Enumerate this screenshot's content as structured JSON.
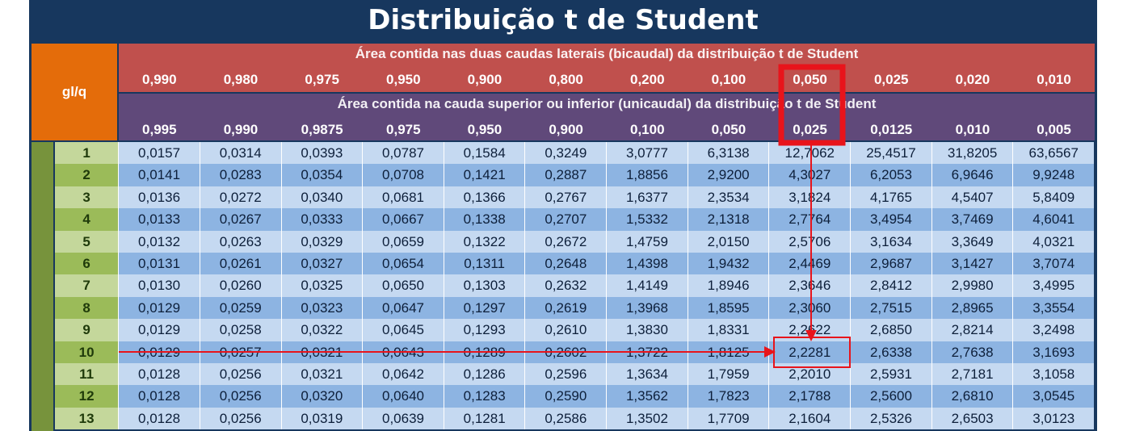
{
  "title": "Distribuição t de Student",
  "corner_label": "gl/q",
  "two_tailed": {
    "title": "Área contida nas duas caudas laterais (bicaudal) da distribuição t de Student",
    "headers": [
      "0,990",
      "0,980",
      "0,975",
      "0,950",
      "0,900",
      "0,800",
      "0,200",
      "0,100",
      "0,050",
      "0,025",
      "0,020",
      "0,010"
    ]
  },
  "one_tailed": {
    "title": "Área contida na cauda superior ou inferior (unicaudal) da distribuição t de Student",
    "headers": [
      "0,995",
      "0,990",
      "0,9875",
      "0,975",
      "0,950",
      "0,900",
      "0,100",
      "0,050",
      "0,025",
      "0,0125",
      "0,010",
      "0,005"
    ]
  },
  "rows": [
    {
      "gl": "1",
      "values": [
        "0,0157",
        "0,0314",
        "0,0393",
        "0,0787",
        "0,1584",
        "0,3249",
        "3,0777",
        "6,3138",
        "12,7062",
        "25,4517",
        "31,8205",
        "63,6567"
      ]
    },
    {
      "gl": "2",
      "values": [
        "0,0141",
        "0,0283",
        "0,0354",
        "0,0708",
        "0,1421",
        "0,2887",
        "1,8856",
        "2,9200",
        "4,3027",
        "6,2053",
        "6,9646",
        "9,9248"
      ]
    },
    {
      "gl": "3",
      "values": [
        "0,0136",
        "0,0272",
        "0,0340",
        "0,0681",
        "0,1366",
        "0,2767",
        "1,6377",
        "2,3534",
        "3,1824",
        "4,1765",
        "4,5407",
        "5,8409"
      ]
    },
    {
      "gl": "4",
      "values": [
        "0,0133",
        "0,0267",
        "0,0333",
        "0,0667",
        "0,1338",
        "0,2707",
        "1,5332",
        "2,1318",
        "2,7764",
        "3,4954",
        "3,7469",
        "4,6041"
      ]
    },
    {
      "gl": "5",
      "values": [
        "0,0132",
        "0,0263",
        "0,0329",
        "0,0659",
        "0,1322",
        "0,2672",
        "1,4759",
        "2,0150",
        "2,5706",
        "3,1634",
        "3,3649",
        "4,0321"
      ]
    },
    {
      "gl": "6",
      "values": [
        "0,0131",
        "0,0261",
        "0,0327",
        "0,0654",
        "0,1311",
        "0,2648",
        "1,4398",
        "1,9432",
        "2,4469",
        "2,9687",
        "3,1427",
        "3,7074"
      ]
    },
    {
      "gl": "7",
      "values": [
        "0,0130",
        "0,0260",
        "0,0325",
        "0,0650",
        "0,1303",
        "0,2632",
        "1,4149",
        "1,8946",
        "2,3646",
        "2,8412",
        "2,9980",
        "3,4995"
      ]
    },
    {
      "gl": "8",
      "values": [
        "0,0129",
        "0,0259",
        "0,0323",
        "0,0647",
        "0,1297",
        "0,2619",
        "1,3968",
        "1,8595",
        "2,3060",
        "2,7515",
        "2,8965",
        "3,3554"
      ]
    },
    {
      "gl": "9",
      "values": [
        "0,0129",
        "0,0258",
        "0,0322",
        "0,0645",
        "0,1293",
        "0,2610",
        "1,3830",
        "1,8331",
        "2,2622",
        "2,6850",
        "2,8214",
        "3,2498"
      ]
    },
    {
      "gl": "10",
      "values": [
        "0,0129",
        "0,0257",
        "0,0321",
        "0,0643",
        "0,1289",
        "0,2602",
        "1,3722",
        "1,8125",
        "2,2281",
        "2,6338",
        "2,7638",
        "3,1693"
      ]
    },
    {
      "gl": "11",
      "values": [
        "0,0128",
        "0,0256",
        "0,0321",
        "0,0642",
        "0,1286",
        "0,2596",
        "1,3634",
        "1,7959",
        "2,2010",
        "2,5931",
        "2,7181",
        "3,1058"
      ]
    },
    {
      "gl": "12",
      "values": [
        "0,0128",
        "0,0256",
        "0,0320",
        "0,0640",
        "0,1283",
        "0,2590",
        "1,3562",
        "1,7823",
        "2,1788",
        "2,5600",
        "2,6810",
        "3,0545"
      ]
    },
    {
      "gl": "13",
      "values": [
        "0,0128",
        "0,0256",
        "0,0319",
        "0,0639",
        "0,1281",
        "0,2586",
        "1,3502",
        "1,7709",
        "2,1604",
        "2,5326",
        "2,6503",
        "3,0123"
      ]
    }
  ],
  "highlight": {
    "row_gl": "10",
    "column_two_tailed": "0,050",
    "column_one_tailed": "0,025",
    "value": "2,2281",
    "color": "#e8141b"
  },
  "colors": {
    "title_bg": "#17375e",
    "corner_bg": "#e46c0a",
    "two_tailed_bg": "#c0504d",
    "one_tailed_bg": "#60497a",
    "gl_odd": "#c4d79b",
    "gl_even": "#9bbb59",
    "cell_odd": "#c5d9f1",
    "cell_even": "#8db4e2",
    "side_strip": "#77933c"
  }
}
